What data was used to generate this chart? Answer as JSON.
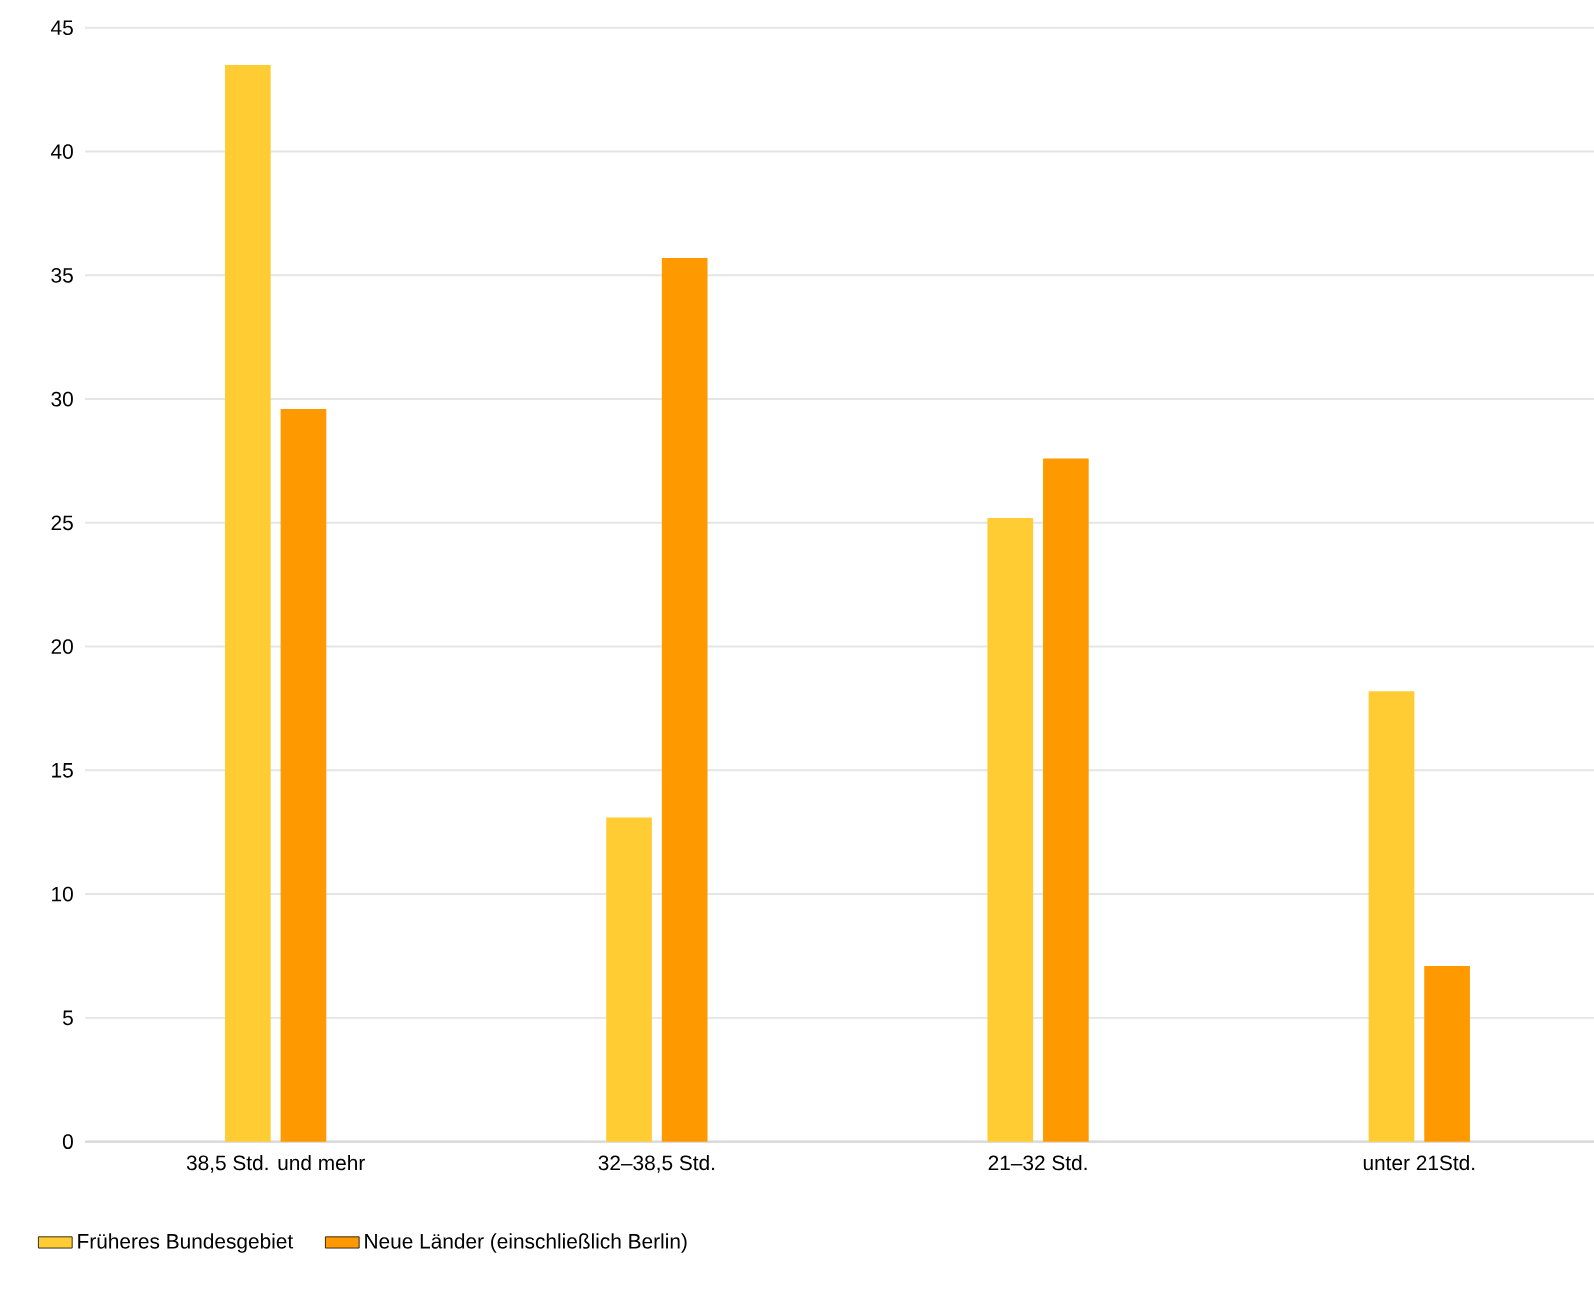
{
  "chart_data": {
    "type": "bar",
    "categories": [
      "38,5 Std. und mehr",
      "32–38,5 Std.",
      "21–32 Std.",
      "unter 21Std."
    ],
    "series": [
      {
        "name": "Früheres Bundesgebiet",
        "color": "#ffcc33",
        "values": [
          43.5,
          13.1,
          25.2,
          18.2
        ]
      },
      {
        "name": "Neue Länder (einschließlich Berlin)",
        "color": "#ff9900",
        "values": [
          29.6,
          35.7,
          27.6,
          7.1
        ]
      }
    ],
    "ylim": [
      0,
      45
    ],
    "yticks": [
      0,
      5,
      10,
      15,
      20,
      25,
      30,
      35,
      40,
      45
    ],
    "grid": "y",
    "legend": "bottom left"
  }
}
